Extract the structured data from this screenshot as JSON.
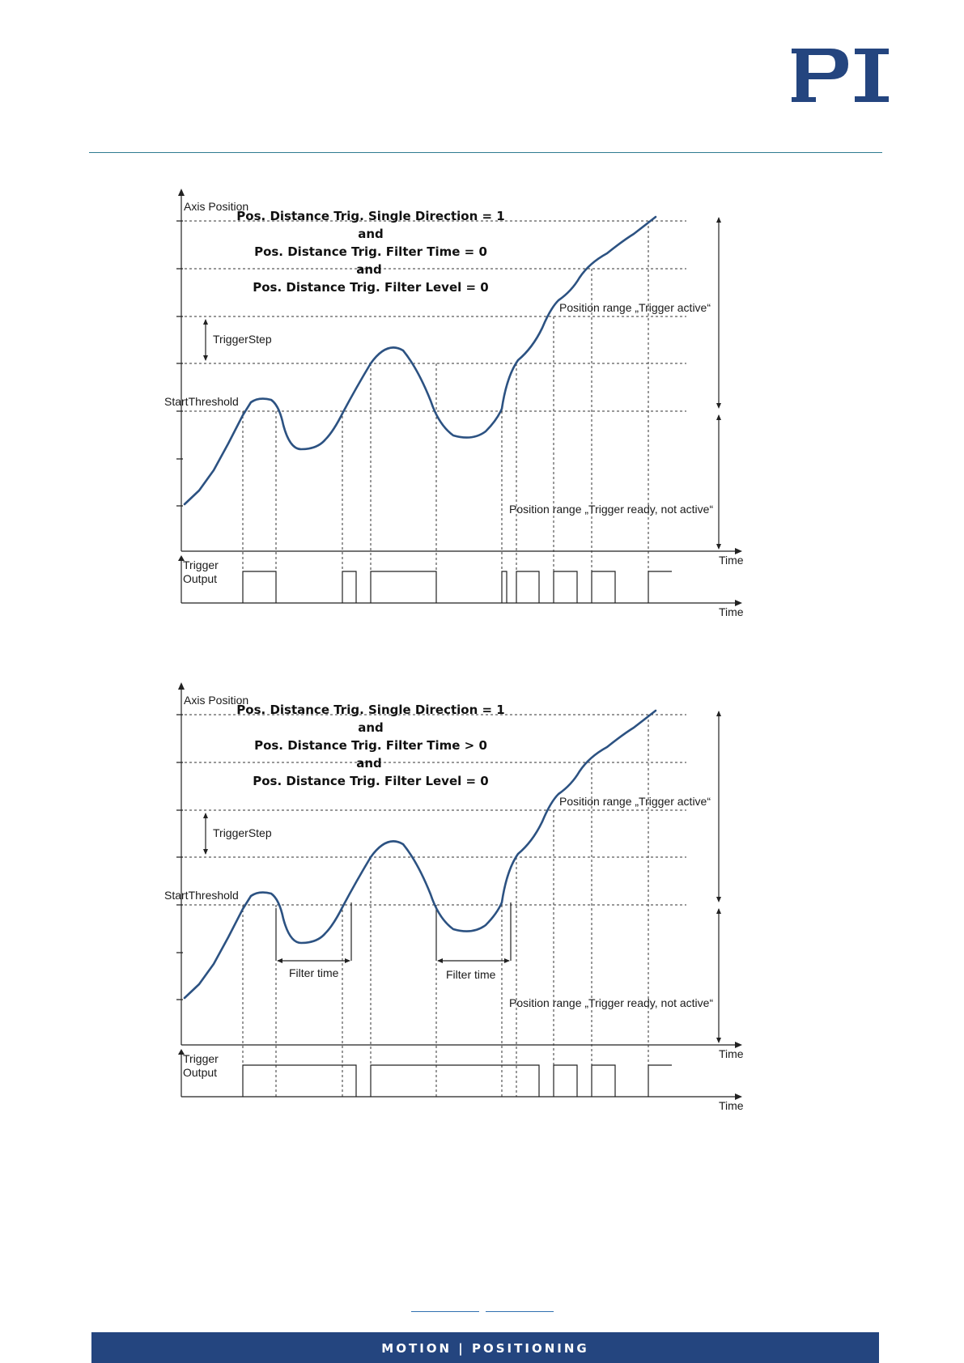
{
  "brand": {
    "logo_text": "PI",
    "color": "#24457f"
  },
  "footer": {
    "tagline": "MOTION | POSITIONING",
    "band_color": "#24457f"
  },
  "diagrams": [
    {
      "title_lines": [
        "Pos. Distance Trig. Single Direction = 1",
        "and",
        "Pos. Distance Trig. Filter Time = 0",
        "and",
        "Pos. Distance Trig. Filter Level = 0"
      ],
      "y_axis_label": "Axis Position",
      "trigger_step_label": "TriggerStep",
      "start_threshold_label": "StartThreshold",
      "range_active_label": "Position range „Trigger active“",
      "range_ready_label": "Position range „Trigger ready, not active“",
      "trigger_output_label_1": "Trigger",
      "trigger_output_label_2": "Output",
      "x_axis_label_top": "Time",
      "x_axis_label_bottom": "Time"
    },
    {
      "title_lines": [
        "Pos. Distance Trig. Single Direction = 1",
        "and",
        "Pos. Distance Trig. Filter Time > 0",
        "and",
        "Pos. Distance Trig. Filter Level = 0"
      ],
      "y_axis_label": "Axis Position",
      "trigger_step_label": "TriggerStep",
      "start_threshold_label": "StartThreshold",
      "range_active_label": "Position range „Trigger active“",
      "range_ready_label": "Position range „Trigger ready, not active“",
      "filter_time_label_1": "Filter time",
      "filter_time_label_2": "Filter time",
      "trigger_output_label_1": "Trigger",
      "trigger_output_label_2": "Output",
      "x_axis_label_top": "Time",
      "x_axis_label_bottom": "Time"
    }
  ]
}
